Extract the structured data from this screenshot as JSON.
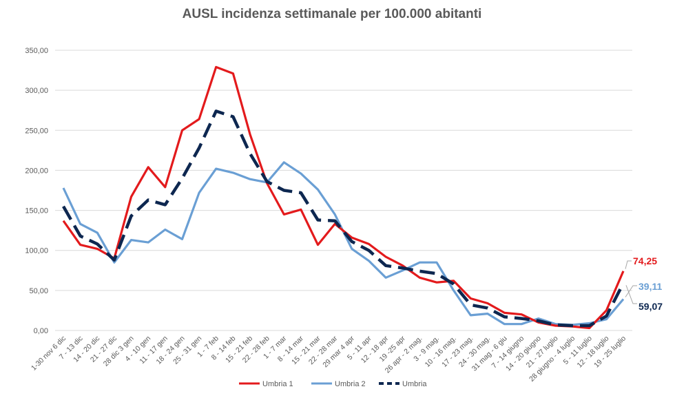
{
  "chart_data": {
    "type": "line",
    "title": "AUSL incidenza settimanale per 100.000 abitanti",
    "xlabel": "",
    "ylabel": "",
    "ylim": [
      0,
      350
    ],
    "y_ticks": [
      "0,00",
      "50,00",
      "100,00",
      "150,00",
      "200,00",
      "250,00",
      "300,00",
      "350,00"
    ],
    "grid": true,
    "legend_position": "bottom",
    "categories": [
      "1-30 nov 6 dic",
      "7 - 13 dic",
      "14 - 20 dic",
      "21 - 27 dic",
      "28 dic 3 gen",
      "4 - 10 gen",
      "11 - 17 gen",
      "18 - 24 gen",
      "25 - 31 gen",
      "1 - 7 feb",
      "8 - 14 feb",
      "15 - 21 feb",
      "22 - 28 feb",
      "1 - 7 mar",
      "8 - 14 mar",
      "15 - 21 mar",
      "22 - 28 mar",
      "29 mar 4 apr",
      "5 - 11 apr",
      "12 - 18 apr",
      "19 -25 apr",
      "26 apr - 2 mag.",
      "3 - 9 mag.",
      "10 - 16 mag.",
      "17 - 23 mag.",
      "24 - 30 mag.",
      "31 mag - 6 giu",
      "7 - 14 giugno",
      "14 - 20 giugno",
      "21 - 27 luglio",
      "28 giugno - 4 luglio",
      "5 - 11 luglio",
      "12 - 18 luglio",
      "19 - 25 luglio"
    ],
    "series": [
      {
        "name": "Umbria 1",
        "color": "#e31a1c",
        "style": "solid",
        "end_label": "74,25",
        "values": [
          137,
          107,
          102,
          90,
          167,
          204,
          179,
          250,
          264,
          329,
          321,
          245,
          184,
          145,
          151,
          107,
          133,
          116,
          108,
          92,
          81,
          66,
          60,
          62,
          40,
          34,
          22,
          20,
          10,
          6,
          5,
          3,
          25,
          74.25
        ]
      },
      {
        "name": "Umbria 2",
        "color": "#6a9fd4",
        "style": "solid",
        "end_label": "39,11",
        "values": [
          178,
          133,
          122,
          85,
          113,
          110,
          126,
          114,
          172,
          202,
          197,
          189,
          185,
          210,
          196,
          176,
          145,
          102,
          87,
          66,
          75,
          85,
          85,
          50,
          19,
          21,
          8,
          8,
          15,
          8,
          7,
          9,
          14,
          39.11
        ]
      },
      {
        "name": "Umbria",
        "color": "#0d2750",
        "style": "dashed",
        "end_label": "59,07",
        "values": [
          155,
          118,
          108,
          88,
          143,
          163,
          157,
          190,
          228,
          274,
          267,
          221,
          186,
          175,
          172,
          138,
          137,
          111,
          100,
          81,
          78,
          74,
          71,
          58,
          32,
          28,
          17,
          15,
          12,
          7,
          6,
          6,
          18,
          59.07
        ]
      }
    ]
  }
}
